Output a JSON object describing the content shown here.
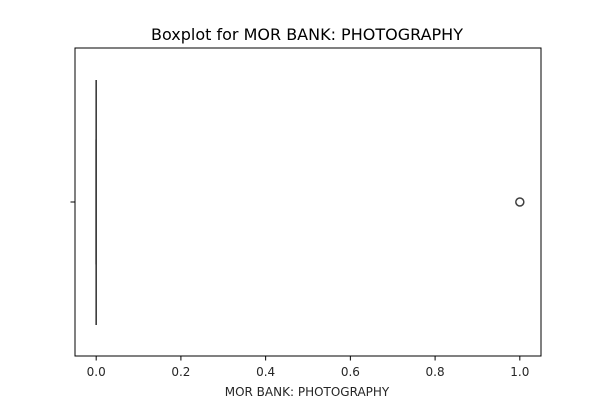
{
  "chart_data": {
    "type": "boxplot",
    "orientation": "horizontal",
    "title": "Boxplot for MOR BANK: PHOTOGRAPHY",
    "xlabel": "MOR BANK: PHOTOGRAPHY",
    "ylabel": "",
    "xlim": [
      -0.05,
      1.05
    ],
    "xticks": [
      0.0,
      0.2,
      0.4,
      0.6,
      0.8,
      1.0
    ],
    "xtick_labels": [
      "0.0",
      "0.2",
      "0.4",
      "0.6",
      "0.8",
      "1.0"
    ],
    "grid": false,
    "box": {
      "whisker_low": 0.0,
      "q1": 0.0,
      "median": 0.0,
      "q3": 0.0,
      "whisker_high": 0.0
    },
    "outliers": [
      1.0
    ],
    "colors": {
      "line": "#3f3f3f",
      "outlier_edge": "#3f3f3f",
      "axes": "#000000"
    }
  }
}
